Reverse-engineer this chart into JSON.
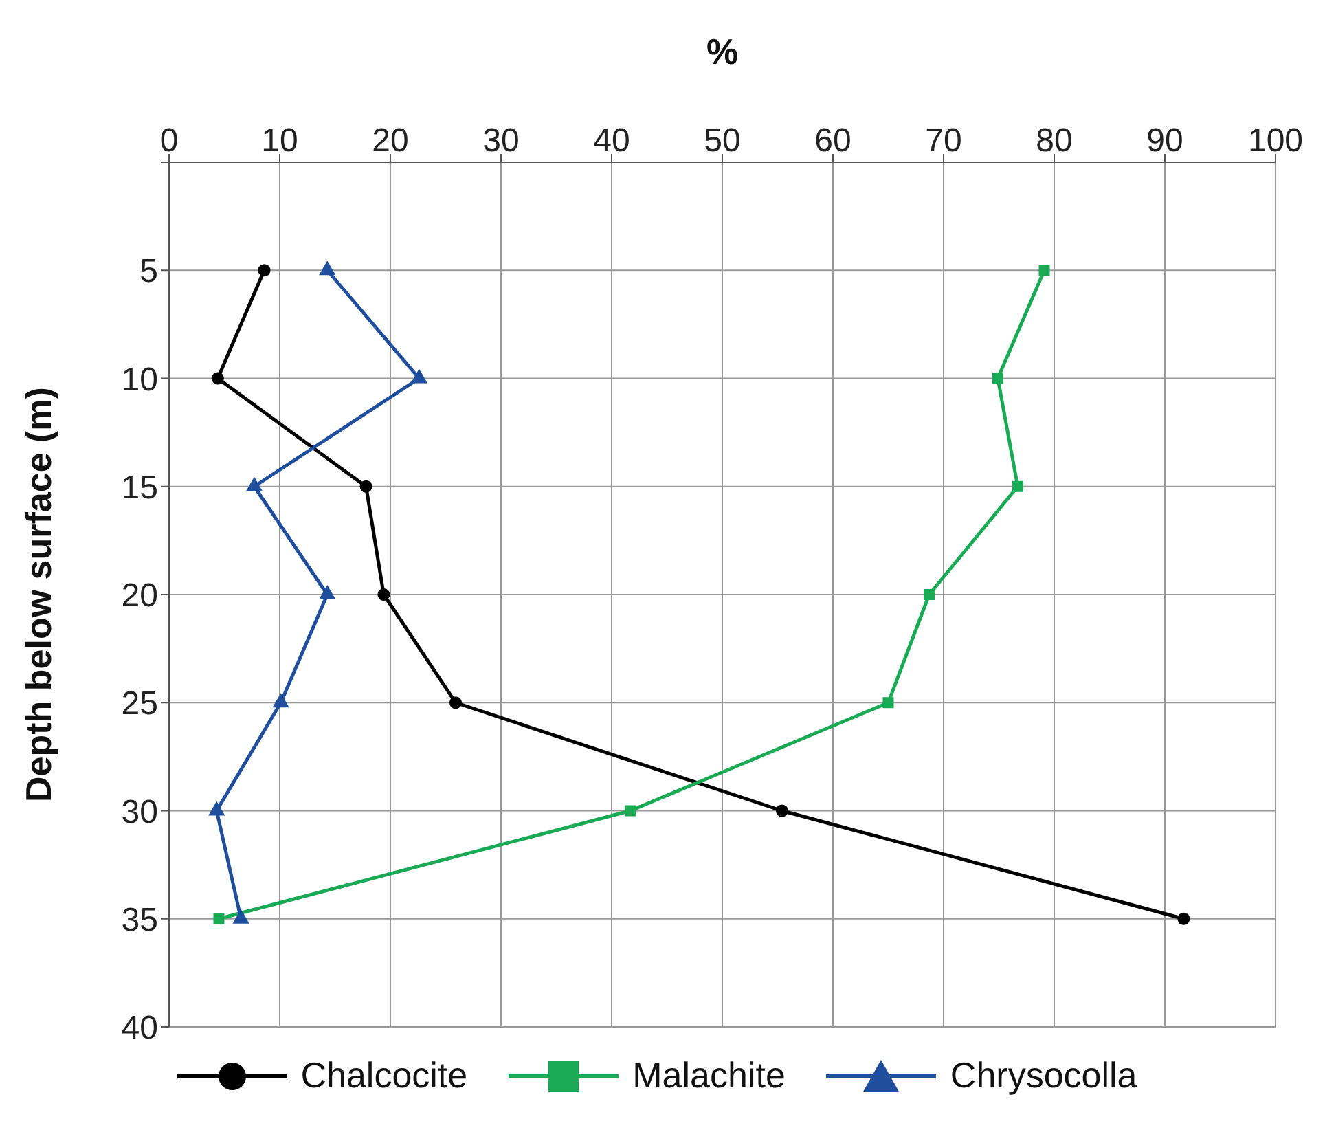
{
  "chart_data": {
    "type": "line",
    "xlabel": "%",
    "ylabel": "Depth below surface (m)",
    "xlim": [
      0,
      100
    ],
    "xticks": [
      0,
      10,
      20,
      30,
      40,
      50,
      60,
      70,
      80,
      90,
      100
    ],
    "ylim": [
      40,
      0
    ],
    "yticks": [
      {
        "value": 0,
        "label": null
      },
      5,
      10,
      15,
      20,
      25,
      30,
      35,
      40
    ],
    "grid": true,
    "legend": "bottom",
    "line_style": "solid",
    "series": [
      {
        "name": "Chalcocite",
        "color": "#000000",
        "marker": "circle",
        "x": [
          8.6,
          4.4,
          17.8,
          19.4,
          25.9,
          55.4,
          91.7
        ],
        "values": [
          5,
          10,
          15,
          20,
          25,
          30,
          35
        ]
      },
      {
        "name": "Malachite",
        "color": "#1aaa55",
        "marker": "square",
        "x": [
          79.1,
          74.9,
          76.7,
          68.7,
          65.0,
          41.7,
          4.5
        ],
        "values": [
          5,
          10,
          15,
          20,
          25,
          30,
          35
        ]
      },
      {
        "name": "Chrysocolla",
        "color": "#1f4e9c",
        "marker": "triangle",
        "x": [
          14.3,
          22.6,
          7.7,
          14.3,
          10.1,
          4.3,
          6.5
        ],
        "values": [
          5,
          10,
          15,
          20,
          25,
          30,
          35
        ]
      }
    ]
  }
}
